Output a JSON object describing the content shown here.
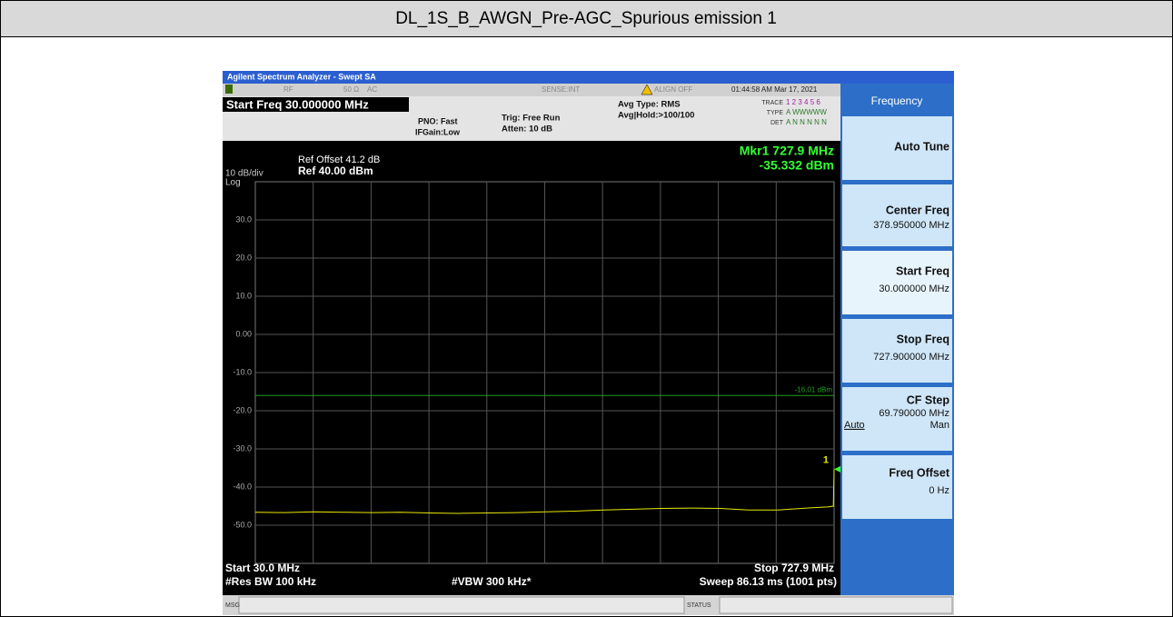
{
  "header": {
    "title": "DL_1S_B_AWGN_Pre-AGC_Spurious emission 1"
  },
  "screen": {
    "window_title": "Agilent Spectrum Analyzer - Swept SA",
    "status": {
      "rf": "RF",
      "impedance": "50 Ω",
      "coupling": "AC",
      "sense": "SENSE:INT",
      "align": "ALIGN OFF",
      "datetime": "01:44:58 AM Mar 17, 2021",
      "active_function": "Start Freq 30.000000 MHz",
      "pno": "PNO: Fast",
      "ifgain": "IFGain:Low",
      "trig": "Trig: Free Run",
      "atten": "Atten: 10 dB",
      "avg_type": "Avg Type: RMS",
      "avg_hold": "Avg|Hold:>100/100",
      "trace_label": "TRACE",
      "trace_nums": "1 2 3 4 5 6",
      "type_label": "TYPE",
      "type_vals": "A WWWWW",
      "det_label": "DET",
      "det_vals": "A N N N N N"
    },
    "display": {
      "ref_offset": "Ref Offset 41.2 dB",
      "ref_level": "Ref 40.00 dBm",
      "scale": "10 dB/div",
      "scale_type": "Log",
      "marker_freq": "Mkr1 727.9 MHz",
      "marker_amp": "-35.332 dBm",
      "start": "Start 30.0 MHz",
      "stop": "Stop 727.9 MHz",
      "rbw": "#Res BW 100 kHz",
      "vbw": "#VBW 300 kHz*",
      "sweep": "Sweep  86.13 ms (1001 pts)"
    },
    "plot": {
      "type": "line",
      "xlim": [
        30,
        727.9
      ],
      "ylim": [
        -60,
        40
      ],
      "yticks": [
        {
          "value": 30,
          "label": "30.0"
        },
        {
          "value": 20,
          "label": "20.0"
        },
        {
          "value": 10,
          "label": "10.0"
        },
        {
          "value": 0,
          "label": "0.00"
        },
        {
          "value": -10,
          "label": "-10.0"
        },
        {
          "value": -20,
          "label": "-20.0"
        },
        {
          "value": -30,
          "label": "-30.0"
        },
        {
          "value": -40,
          "label": "-40.0"
        },
        {
          "value": -50,
          "label": "-50.0"
        }
      ],
      "limit_line": {
        "value": -16.01,
        "label": "-16.01 dBm",
        "color": "#1fa01f"
      },
      "trace": {
        "color": "#e8e800",
        "x": [
          30,
          65,
          100,
          135,
          170,
          205,
          240,
          275,
          310,
          345,
          380,
          415,
          450,
          485,
          520,
          555,
          590,
          625,
          660,
          695,
          720,
          727,
          727.9
        ],
        "values": [
          -46.6,
          -46.7,
          -46.5,
          -46.6,
          -46.7,
          -46.6,
          -46.8,
          -46.9,
          -46.8,
          -46.7,
          -46.5,
          -46.3,
          -46.0,
          -45.8,
          -45.6,
          -45.5,
          -45.6,
          -46.0,
          -46.0,
          -45.5,
          -45.2,
          -45.0,
          -35.332
        ]
      },
      "marker": {
        "number": "1",
        "x": 727.9,
        "y": -35.332,
        "color": "#33ff33"
      }
    },
    "msg": "MSG",
    "status_bar": "STATUS",
    "softkeys": {
      "menu": "Frequency",
      "auto_tune": "Auto Tune",
      "center_freq": {
        "label": "Center Freq",
        "value": "378.950000 MHz"
      },
      "start_freq": {
        "label": "Start Freq",
        "value": "30.000000 MHz"
      },
      "stop_freq": {
        "label": "Stop Freq",
        "value": "727.900000 MHz"
      },
      "cf_step": {
        "label": "CF Step",
        "value": "69.790000 MHz",
        "auto": "Auto",
        "man": "Man"
      },
      "freq_offset": {
        "label": "Freq Offset",
        "value": "0 Hz"
      }
    }
  }
}
